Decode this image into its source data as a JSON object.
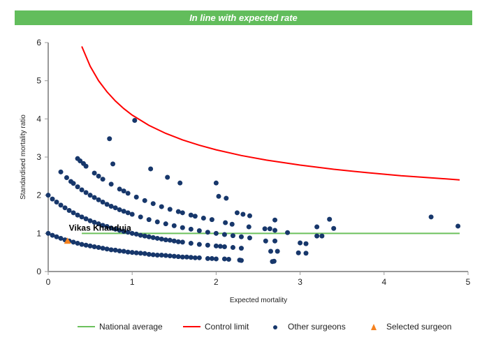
{
  "banner": {
    "text": "In line with expected rate",
    "color": "#62bd5c"
  },
  "chart_data": {
    "type": "scatter",
    "xlabel": "Expected mortality",
    "ylabel": "Standardised mortality ratio",
    "xlim": [
      0,
      5
    ],
    "ylim": [
      0,
      6
    ],
    "xticks": [
      "0",
      "1",
      "2",
      "3",
      "4",
      "5"
    ],
    "yticks": [
      "0",
      "1",
      "2",
      "3",
      "4",
      "5",
      "6"
    ],
    "grid": false,
    "legend_position": "bottom-right",
    "legend": [
      "National average",
      "Control limit",
      "Other surgeons",
      "Selected surgeon"
    ],
    "colors": {
      "national_average": "#6cc15d",
      "control_limit": "#ff0000",
      "other_surgeons": "#17376b",
      "selected_surgeon": "#f5821f"
    },
    "national_average": {
      "x": [
        0.4,
        4.9
      ],
      "y": [
        1,
        1
      ]
    },
    "control_limit": {
      "x": [
        0.4,
        0.5,
        0.6,
        0.7,
        0.8,
        0.9,
        1.0,
        1.2,
        1.4,
        1.6,
        1.8,
        2.0,
        2.3,
        2.6,
        3.0,
        3.4,
        3.8,
        4.2,
        4.6,
        4.9
      ],
      "y": [
        5.9,
        5.38,
        5.0,
        4.71,
        4.47,
        4.27,
        4.1,
        3.83,
        3.62,
        3.45,
        3.31,
        3.19,
        3.04,
        2.92,
        2.79,
        2.68,
        2.59,
        2.51,
        2.45,
        2.4
      ]
    },
    "other_surgeons": {
      "x": [
        0,
        0.05,
        0.1,
        0.15,
        0.2,
        0.25,
        0.3,
        0.35,
        0.4,
        0.45,
        0.5,
        0.55,
        0.6,
        0.65,
        0.7,
        0.75,
        0.8,
        0.85,
        0.9,
        0.95,
        1.0,
        1.05,
        1.1,
        1.15,
        1.2,
        1.25,
        1.3,
        1.35,
        1.4,
        1.45,
        1.5,
        1.55,
        1.6,
        1.65,
        1.7,
        1.75,
        1.8,
        1.9,
        1.95,
        2.0,
        2.1,
        2.15,
        2.28,
        2.69,
        0,
        0.05,
        0.1,
        0.15,
        0.2,
        0.25,
        0.3,
        0.35,
        0.4,
        0.45,
        0.5,
        0.55,
        0.6,
        0.65,
        0.7,
        0.75,
        0.8,
        0.85,
        0.9,
        0.95,
        1.0,
        1.05,
        1.1,
        1.15,
        1.2,
        1.25,
        1.3,
        1.35,
        1.4,
        1.45,
        1.5,
        1.55,
        1.6,
        1.7,
        1.8,
        1.9,
        2.0,
        2.05,
        2.1,
        2.2,
        2.3,
        0.15,
        0.22,
        0.27,
        0.3,
        0.35,
        0.4,
        0.45,
        0.5,
        0.55,
        0.6,
        0.65,
        0.7,
        0.75,
        0.8,
        0.85,
        0.9,
        0.95,
        1.0,
        1.1,
        1.2,
        1.3,
        1.4,
        1.5,
        1.6,
        1.7,
        1.8,
        1.9,
        2.0,
        2.1,
        2.2,
        2.3,
        2.4,
        0.38,
        0.45,
        0.55,
        0.6,
        0.65,
        0.75,
        0.85,
        0.9,
        0.95,
        1.05,
        1.15,
        1.25,
        1.35,
        1.45,
        1.55,
        1.6,
        1.7,
        1.75,
        1.85,
        1.95,
        1.03,
        0.73,
        0.35,
        0.42,
        0.77,
        1.22,
        1.42,
        1.57,
        2.0,
        2.03,
        2.12,
        2.25,
        2.32,
        2.4,
        2.11,
        2.19,
        2.39,
        2.58,
        2.64,
        2.7,
        2.7,
        2.85,
        2.59,
        2.7,
        2.65,
        2.73,
        3.0,
        3.07,
        2.98,
        3.07,
        3.2,
        3.35,
        3.4,
        3.2,
        3.26,
        4.56,
        4.88,
        2.3,
        2.67
      ],
      "y": [
        1,
        0.95,
        0.91,
        0.87,
        0.83,
        0.8,
        0.77,
        0.74,
        0.71,
        0.69,
        0.67,
        0.65,
        0.63,
        0.61,
        0.59,
        0.57,
        0.56,
        0.54,
        0.53,
        0.51,
        0.5,
        0.49,
        0.48,
        0.47,
        0.45,
        0.44,
        0.43,
        0.43,
        0.42,
        0.41,
        0.4,
        0.39,
        0.38,
        0.38,
        0.37,
        0.36,
        0.36,
        0.34,
        0.34,
        0.33,
        0.33,
        0.32,
        0.3,
        0.27,
        2,
        1.9,
        1.82,
        1.74,
        1.67,
        1.6,
        1.54,
        1.48,
        1.43,
        1.38,
        1.33,
        1.29,
        1.25,
        1.21,
        1.18,
        1.14,
        1.11,
        1.08,
        1.05,
        1.03,
        1,
        0.98,
        0.95,
        0.93,
        0.91,
        0.89,
        0.87,
        0.85,
        0.83,
        0.82,
        0.8,
        0.78,
        0.77,
        0.74,
        0.71,
        0.69,
        0.67,
        0.66,
        0.65,
        0.63,
        0.61,
        2.61,
        2.46,
        2.36,
        2.31,
        2.22,
        2.14,
        2.07,
        2.0,
        1.94,
        1.88,
        1.82,
        1.76,
        1.71,
        1.67,
        1.62,
        1.58,
        1.54,
        1.5,
        1.43,
        1.36,
        1.3,
        1.25,
        1.2,
        1.15,
        1.11,
        1.07,
        1.03,
        1.0,
        0.97,
        0.94,
        0.91,
        0.88,
        2.9,
        2.76,
        2.58,
        2.5,
        2.42,
        2.29,
        2.16,
        2.11,
        2.05,
        1.95,
        1.86,
        1.78,
        1.7,
        1.63,
        1.57,
        1.54,
        1.48,
        1.45,
        1.4,
        1.36,
        3.96,
        3.48,
        2.96,
        2.83,
        2.82,
        2.69,
        2.47,
        2.32,
        2.32,
        1.97,
        1.92,
        1.54,
        1.5,
        1.46,
        1.28,
        1.24,
        1.17,
        1.12,
        1.12,
        1.35,
        1.08,
        1.02,
        0.8,
        0.8,
        0.53,
        0.53,
        0.75,
        0.73,
        0.49,
        0.48,
        1.17,
        1.37,
        1.13,
        0.93,
        0.93,
        1.43,
        1.19,
        0.29,
        0.26
      ]
    },
    "selected_surgeon": {
      "name": "Vikas Khanduja",
      "x": 0.23,
      "y": 0.8
    }
  }
}
